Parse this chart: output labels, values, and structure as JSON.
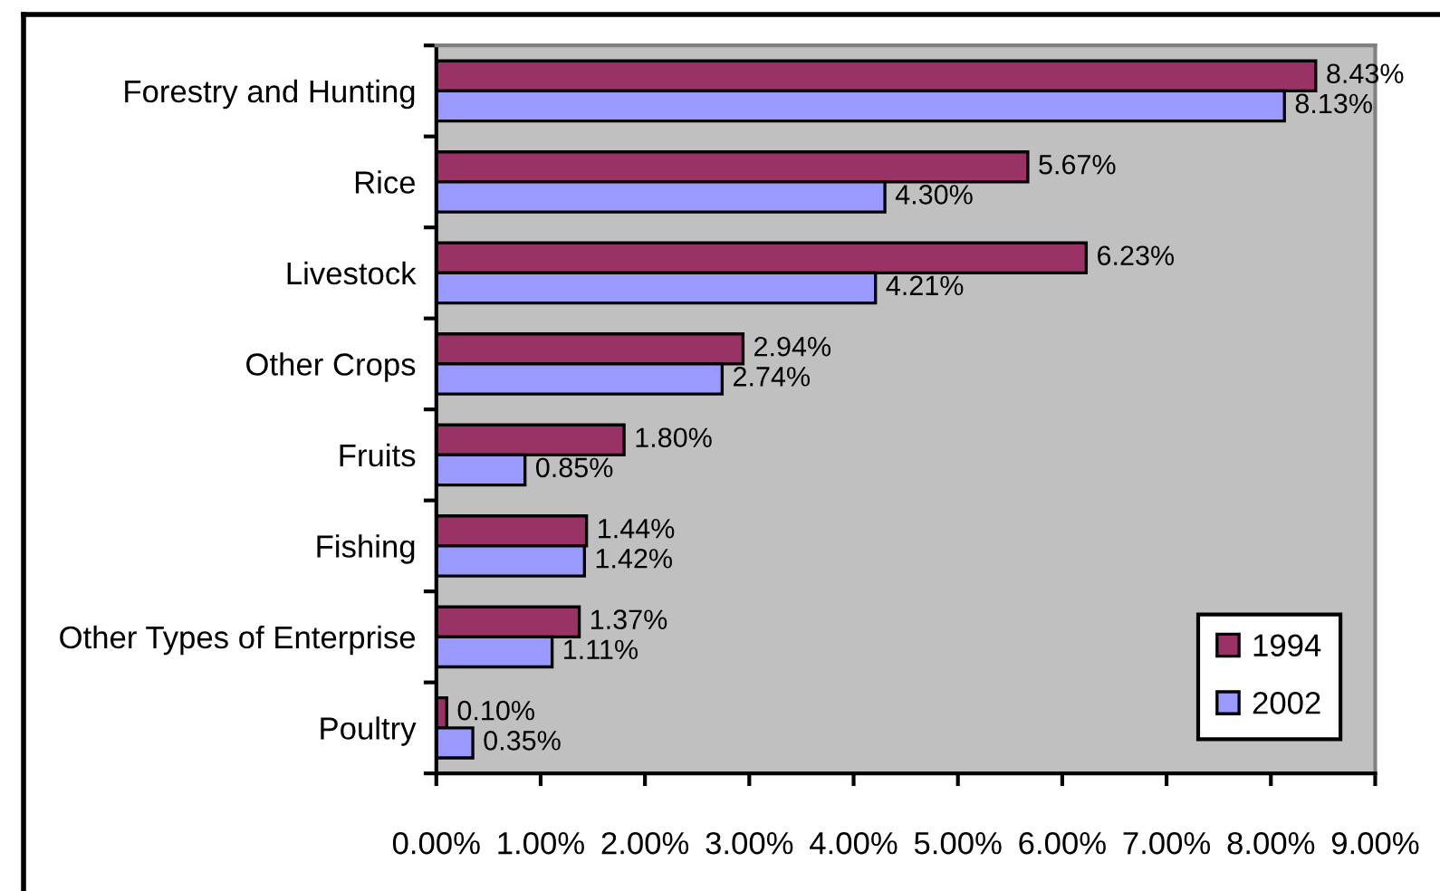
{
  "chart_data": {
    "type": "bar",
    "orientation": "horizontal",
    "categories": [
      "Forestry and Hunting",
      "Rice",
      "Livestock",
      "Other Crops",
      "Fruits",
      "Fishing",
      "Other Types of Enterprise",
      "Poultry"
    ],
    "series": [
      {
        "name": "1994",
        "color": "#993366",
        "values": [
          8.43,
          5.67,
          6.23,
          2.94,
          1.8,
          1.44,
          1.37,
          0.1
        ],
        "value_labels": [
          "8.43%",
          "5.67%",
          "6.23%",
          "2.94%",
          "1.80%",
          "1.44%",
          "1.37%",
          "0.10%"
        ]
      },
      {
        "name": "2002",
        "color": "#9999ff",
        "values": [
          8.13,
          4.3,
          4.21,
          2.74,
          0.85,
          1.42,
          1.11,
          0.35
        ],
        "value_labels": [
          "8.13%",
          "4.30%",
          "4.21%",
          "2.74%",
          "0.85%",
          "1.42%",
          "1.11%",
          "0.35%"
        ]
      }
    ],
    "xlim": [
      0,
      9
    ],
    "xticks": [
      {
        "value": 0,
        "label": "0.00%"
      },
      {
        "value": 1,
        "label": "1.00%"
      },
      {
        "value": 2,
        "label": "2.00%"
      },
      {
        "value": 3,
        "label": "3.00%"
      },
      {
        "value": 4,
        "label": "4.00%"
      },
      {
        "value": 5,
        "label": "5.00%"
      },
      {
        "value": 6,
        "label": "6.00%"
      },
      {
        "value": 7,
        "label": "7.00%"
      },
      {
        "value": 8,
        "label": "8.00%"
      },
      {
        "value": 9,
        "label": "9.00%"
      }
    ],
    "legend": "bottom right",
    "grid": false
  }
}
